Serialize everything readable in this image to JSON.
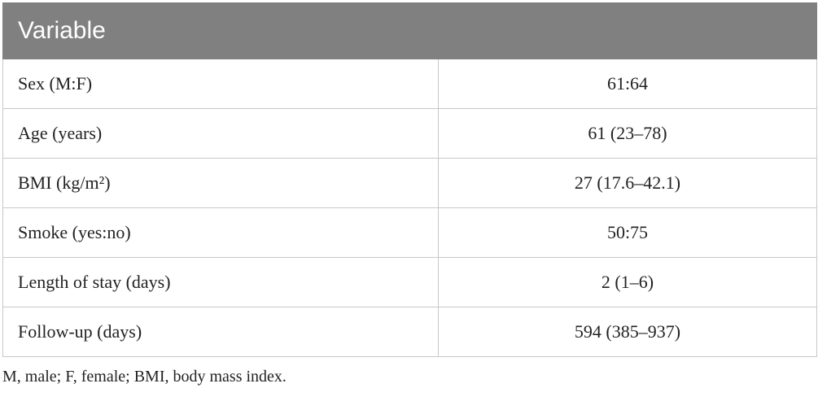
{
  "header": {
    "title": "Variable"
  },
  "table": {
    "rows": [
      [
        "Sex (M:F)",
        "61:64"
      ],
      [
        "Age (years)",
        "61 (23–78)"
      ],
      [
        "BMI (kg/m²)",
        "27 (17.6–42.1)"
      ],
      [
        "Smoke (yes:no)",
        "50:75"
      ],
      [
        "Length of stay (days)",
        "2 (1–6)"
      ],
      [
        "Follow-up (days)",
        "594 (385–937)"
      ]
    ]
  },
  "footnote": "M, male; F, female; BMI, body mass index."
}
